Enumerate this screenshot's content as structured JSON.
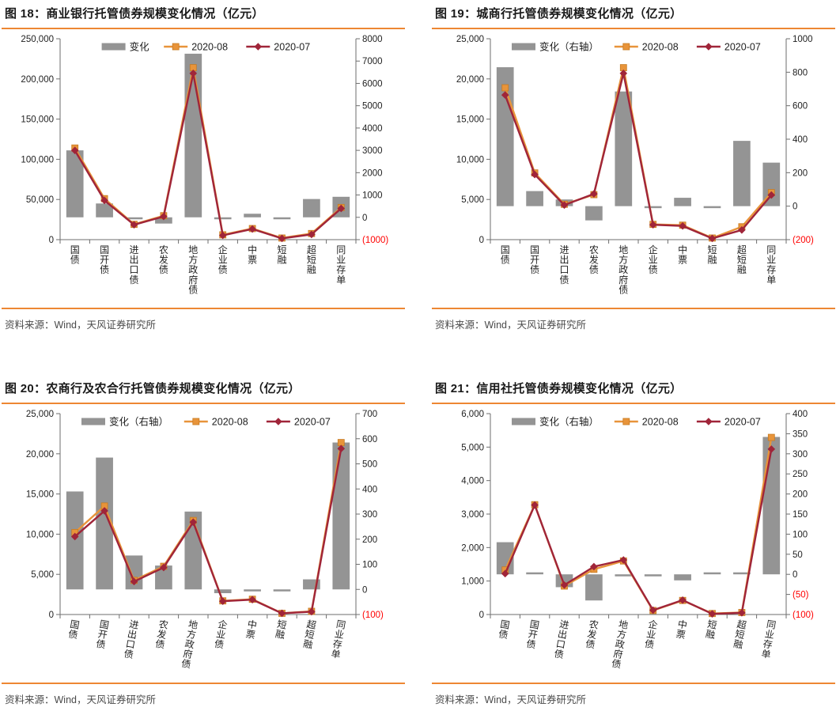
{
  "source_label": "资料来源：Wind，天风证券研究所",
  "colors": {
    "accent_rule": "#ED8733",
    "bar": "#949494",
    "series_aug": "#E8943A",
    "series_aug_marker_edge": "#C77B22",
    "series_jul": "#A02539",
    "negative_tick": "#FF0000",
    "axis_line": "#6E6E6E",
    "tick_text": "#1F1F1F",
    "title_text": "#1A1A1A",
    "source_text": "#4A4A4A"
  },
  "categories": [
    "国债",
    "国开债",
    "进出口债",
    "农发债",
    "地方政府债",
    "企业债",
    "中票",
    "短融",
    "超短融",
    "同业存单"
  ],
  "chart_data": [
    {
      "id": "fig18",
      "type": "combo-bar-line",
      "title": "图 18：商业银行托管债券规模变化情况（亿元）",
      "legend_position": "top-center",
      "grid": false,
      "xlabel_tilt": 0,
      "left_axis": {
        "min": 0,
        "max": 250000,
        "tick_labels": [
          "0",
          "50,000",
          "100,000",
          "150,000",
          "200,000",
          "250,000"
        ]
      },
      "right_axis": {
        "min": -1000,
        "max": 8000,
        "tick_labels": [
          "(1000)",
          "0",
          "1000",
          "2000",
          "3000",
          "4000",
          "5000",
          "6000",
          "7000",
          "8000"
        ]
      },
      "bar_series": {
        "name": "变化",
        "axis": "right",
        "values": [
          3000,
          620,
          -30,
          -280,
          7330,
          -50,
          160,
          -80,
          820,
          920
        ]
      },
      "line_series": [
        {
          "name": "2020-08",
          "axis": "left",
          "marker": "square",
          "values": [
            114000,
            51000,
            19000,
            29800,
            214000,
            6000,
            13800,
            2000,
            7600,
            40000
          ]
        },
        {
          "name": "2020-07",
          "axis": "left",
          "marker": "diamond",
          "values": [
            111000,
            48800,
            18500,
            28800,
            207000,
            5300,
            13200,
            1500,
            6500,
            38800
          ]
        }
      ]
    },
    {
      "id": "fig19",
      "type": "combo-bar-line",
      "title": "图 19：城商行托管债券规模变化情况（亿元）",
      "legend_position": "top-center",
      "grid": false,
      "xlabel_tilt": 0,
      "left_axis": {
        "min": 0,
        "max": 25000,
        "tick_labels": [
          "0",
          "5,000",
          "10,000",
          "15,000",
          "20,000",
          "25,000"
        ]
      },
      "right_axis": {
        "min": -200,
        "max": 1000,
        "tick_labels": [
          "(200)",
          "0",
          "200",
          "400",
          "600",
          "800",
          "1000"
        ]
      },
      "bar_series": {
        "name": "变化（右轴）",
        "axis": "right",
        "values": [
          830,
          90,
          40,
          -85,
          685,
          -10,
          50,
          -3,
          390,
          260
        ]
      },
      "line_series": [
        {
          "name": "2020-08",
          "axis": "left",
          "marker": "square",
          "values": [
            18900,
            8300,
            4400,
            5600,
            21400,
            1900,
            1800,
            200,
            1600,
            5850
          ]
        },
        {
          "name": "2020-07",
          "axis": "left",
          "marker": "diamond",
          "values": [
            18000,
            8100,
            4300,
            5700,
            20700,
            1850,
            1700,
            150,
            1200,
            5550
          ]
        }
      ]
    },
    {
      "id": "fig20",
      "type": "combo-bar-line",
      "title": "图 20：农商行及农合行托管债券规模变化情况（亿元）",
      "legend_position": "top-center",
      "grid": false,
      "xlabel_tilt": 10,
      "left_axis": {
        "min": 0,
        "max": 25000,
        "tick_labels": [
          "0",
          "5,000",
          "10,000",
          "15,000",
          "20,000",
          "25,000"
        ]
      },
      "right_axis": {
        "min": -100,
        "max": 700,
        "tick_labels": [
          "(100)",
          "0",
          "100",
          "200",
          "300",
          "400",
          "500",
          "600",
          "700"
        ]
      },
      "bar_series": {
        "name": "变化（右轴）",
        "axis": "right",
        "values": [
          390,
          525,
          135,
          95,
          310,
          -15,
          -5,
          -4,
          40,
          585
        ]
      },
      "line_series": [
        {
          "name": "2020-08",
          "axis": "left",
          "marker": "square",
          "values": [
            10200,
            13500,
            4250,
            6000,
            11700,
            1700,
            1900,
            150,
            400,
            21400
          ]
        },
        {
          "name": "2020-07",
          "axis": "left",
          "marker": "diamond",
          "values": [
            9700,
            12900,
            4100,
            5850,
            11500,
            1650,
            1850,
            150,
            350,
            20650
          ]
        }
      ]
    },
    {
      "id": "fig21",
      "type": "combo-bar-line",
      "title": "图 21：信用社托管债券规模变化情况（亿元）",
      "legend_position": "top-center",
      "grid": false,
      "xlabel_tilt": 10,
      "left_axis": {
        "min": 0,
        "max": 6000,
        "tick_labels": [
          "0",
          "1,000",
          "2,000",
          "3,000",
          "4,000",
          "5,000",
          "6,000"
        ]
      },
      "right_axis": {
        "min": -100,
        "max": 400,
        "tick_labels": [
          "(100)",
          "(50)",
          "0",
          "50",
          "100",
          "150",
          "200",
          "250",
          "300",
          "350",
          "400"
        ]
      },
      "bar_series": {
        "name": "变化（右轴）",
        "axis": "right",
        "values": [
          80,
          2,
          -32,
          -65,
          -5,
          -5,
          -15,
          1,
          2,
          342
        ]
      },
      "line_series": [
        {
          "name": "2020-08",
          "axis": "left",
          "marker": "square",
          "values": [
            1330,
            3280,
            850,
            1350,
            1600,
            120,
            420,
            30,
            60,
            5290
          ]
        },
        {
          "name": "2020-07",
          "axis": "left",
          "marker": "diamond",
          "values": [
            1220,
            3270,
            880,
            1430,
            1630,
            130,
            430,
            20,
            50,
            4940
          ]
        }
      ]
    }
  ]
}
